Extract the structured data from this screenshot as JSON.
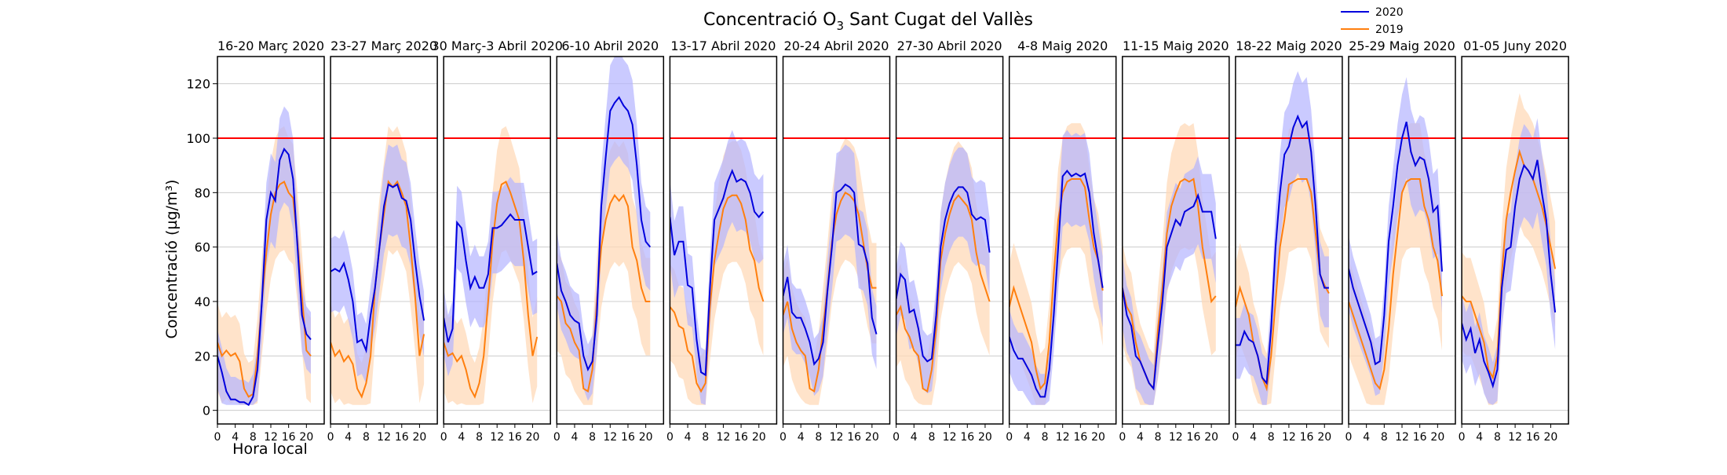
{
  "chart_data": {
    "type": "line",
    "title": "Concentració O",
    "title_subscript": "3",
    "title_suffix": " Sant Cugat del Vallès",
    "ylabel": "Concentració (µg/m³)",
    "xlabel": "Hora local",
    "ylim": [
      -5,
      130
    ],
    "yticks": [
      0,
      20,
      40,
      60,
      80,
      100,
      120
    ],
    "xlim": [
      0,
      24
    ],
    "xticks": [
      0,
      4,
      8,
      12,
      16,
      20
    ],
    "grid": "horizontal",
    "threshold": 100,
    "threshold_color": "#ff0000",
    "legend_position": "top-right",
    "series_style": [
      {
        "name": "2020",
        "color": "#0000dd",
        "band_color": "#b3b3ff"
      },
      {
        "name": "2019",
        "color": "#ff7f0e",
        "band_color": "#ffd9b8"
      }
    ],
    "panels": [
      {
        "title": "16-20 Març 2020",
        "s2020": [
          20,
          14,
          7,
          4,
          4,
          3,
          3,
          2,
          5,
          15,
          40,
          70,
          80,
          77,
          92,
          96,
          94,
          85,
          60,
          35,
          28,
          26
        ],
        "s2019": [
          25,
          20,
          22,
          20,
          21,
          18,
          8,
          5,
          6,
          20,
          40,
          58,
          72,
          80,
          83,
          84,
          80,
          78,
          62,
          42,
          22,
          20
        ]
      },
      {
        "title": "23-27 Març 2020",
        "s2020": [
          51,
          52,
          51,
          54,
          48,
          40,
          25,
          26,
          22,
          35,
          45,
          60,
          75,
          83,
          82,
          83,
          78,
          77,
          70,
          55,
          42,
          33
        ],
        "s2019": [
          25,
          20,
          22,
          18,
          20,
          17,
          8,
          5,
          10,
          20,
          45,
          60,
          72,
          84,
          82,
          84,
          80,
          75,
          60,
          42,
          20,
          28
        ]
      },
      {
        "title": "30 Març-3 Abril 2020",
        "s2020": [
          34,
          25,
          30,
          69,
          67,
          55,
          45,
          49,
          45,
          45,
          50,
          67,
          67,
          68,
          70,
          72,
          70,
          70,
          70,
          60,
          50,
          51
        ],
        "s2019": [
          25,
          20,
          21,
          18,
          20,
          15,
          8,
          5,
          10,
          20,
          40,
          62,
          76,
          83,
          84,
          80,
          75,
          70,
          55,
          35,
          20,
          27
        ]
      },
      {
        "title": "6-10 Abril 2020",
        "s2020": [
          54,
          44,
          40,
          35,
          33,
          32,
          20,
          15,
          18,
          35,
          75,
          93,
          110,
          113,
          115,
          112,
          110,
          105,
          90,
          70,
          62,
          60
        ],
        "s2019": [
          42,
          40,
          32,
          30,
          25,
          22,
          8,
          7,
          15,
          40,
          60,
          70,
          76,
          79,
          77,
          79,
          75,
          60,
          55,
          45,
          40,
          40
        ]
      },
      {
        "title": "13-17 Abril 2020",
        "s2020": [
          71,
          57,
          62,
          62,
          46,
          45,
          26,
          14,
          13,
          45,
          70,
          74,
          78,
          84,
          88,
          84,
          85,
          84,
          80,
          73,
          71,
          73
        ],
        "s2019": [
          38,
          36,
          31,
          30,
          22,
          20,
          10,
          7,
          10,
          38,
          55,
          65,
          74,
          78,
          79,
          79,
          76,
          70,
          59,
          55,
          45,
          40
        ]
      },
      {
        "title": "20-24 Abril 2020",
        "s2020": [
          42,
          49,
          36,
          34,
          34,
          30,
          25,
          17,
          19,
          25,
          44,
          60,
          80,
          81,
          83,
          82,
          80,
          61,
          60,
          54,
          34,
          28
        ],
        "s2019": [
          35,
          40,
          30,
          25,
          22,
          20,
          8,
          7,
          15,
          30,
          45,
          62,
          72,
          77,
          80,
          79,
          77,
          72,
          62,
          52,
          45,
          45
        ]
      },
      {
        "title": "27-30 Abril 2020",
        "s2020": [
          41,
          50,
          48,
          36,
          37,
          30,
          20,
          18,
          19,
          35,
          60,
          70,
          76,
          80,
          82,
          82,
          80,
          72,
          70,
          71,
          70,
          58
        ],
        "s2019": [
          35,
          38,
          30,
          27,
          22,
          20,
          8,
          7,
          15,
          30,
          55,
          65,
          72,
          77,
          79,
          77,
          75,
          70,
          58,
          50,
          45,
          40
        ]
      },
      {
        "title": "4-8 Maig 2020",
        "s2020": [
          27,
          22,
          19,
          19,
          16,
          13,
          8,
          5,
          5,
          15,
          35,
          60,
          86,
          88,
          86,
          87,
          86,
          87,
          80,
          65,
          55,
          45
        ],
        "s2019": [
          38,
          45,
          40,
          35,
          30,
          25,
          15,
          8,
          10,
          25,
          50,
          70,
          80,
          84,
          85,
          85,
          85,
          82,
          70,
          60,
          55,
          44
        ]
      },
      {
        "title": "11-15 Maig 2020",
        "s2020": [
          45,
          35,
          31,
          20,
          18,
          14,
          10,
          8,
          25,
          40,
          60,
          65,
          70,
          68,
          73,
          74,
          75,
          79,
          73,
          73,
          73,
          63
        ],
        "s2019": [
          45,
          38,
          35,
          25,
          18,
          14,
          10,
          8,
          30,
          45,
          65,
          75,
          80,
          84,
          85,
          84,
          85,
          75,
          60,
          50,
          40,
          42
        ]
      },
      {
        "title": "18-22 Maig 2020",
        "s2020": [
          24,
          24,
          29,
          26,
          25,
          20,
          12,
          10,
          30,
          60,
          80,
          94,
          97,
          104,
          108,
          104,
          106,
          95,
          75,
          50,
          45,
          45
        ],
        "s2019": [
          38,
          45,
          40,
          35,
          25,
          20,
          12,
          8,
          20,
          40,
          60,
          70,
          83,
          84,
          85,
          85,
          85,
          80,
          65,
          50,
          46,
          43
        ]
      },
      {
        "title": "25-29 Maig 2020",
        "s2020": [
          52,
          45,
          40,
          35,
          30,
          25,
          17,
          18,
          35,
          62,
          75,
          90,
          100,
          106,
          95,
          90,
          93,
          92,
          85,
          73,
          75,
          51
        ],
        "s2019": [
          40,
          35,
          30,
          25,
          20,
          15,
          10,
          8,
          15,
          30,
          50,
          65,
          80,
          84,
          85,
          85,
          85,
          75,
          70,
          60,
          55,
          42
        ]
      },
      {
        "title": "01-05 Juny 2020",
        "s2020": [
          32,
          26,
          30,
          21,
          26,
          18,
          14,
          9,
          15,
          45,
          59,
          60,
          75,
          85,
          90,
          88,
          85,
          92,
          80,
          70,
          50,
          36
        ],
        "s2019": [
          42,
          40,
          40,
          35,
          30,
          25,
          15,
          12,
          20,
          50,
          70,
          80,
          88,
          95,
          90,
          88,
          85,
          80,
          75,
          68,
          60,
          52
        ]
      }
    ]
  }
}
